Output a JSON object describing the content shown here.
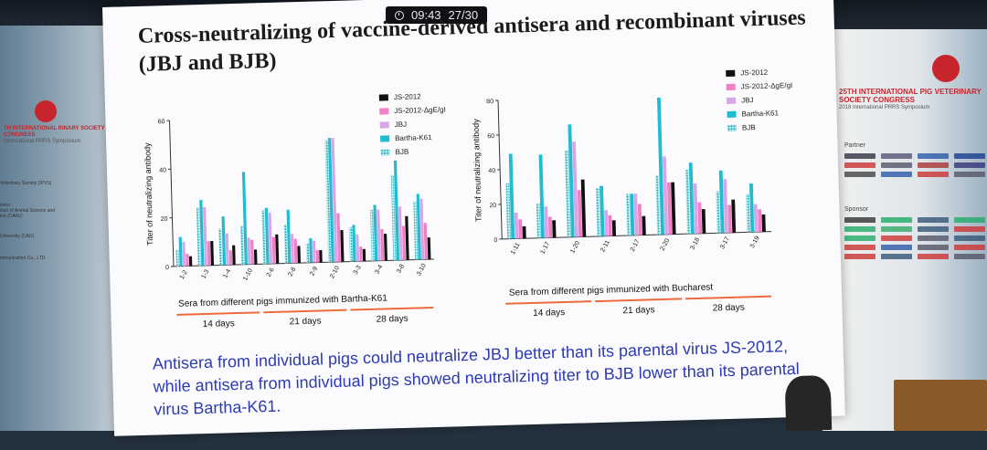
{
  "overlay": {
    "time": "09:43",
    "page": "27/30"
  },
  "slide": {
    "title": "Cross-neutralizing of vaccine-derived antisera and recombinant viruses (JBJ and BJB)",
    "statement": "Antisera from individual pigs could neutralize JBJ better than its parental virus JS-2012, while antisera from individual pigs showed neutralizing titer to BJB lower than its parental virus Bartha-K61."
  },
  "side_banner": {
    "right_title": "25TH INTERNATIONAL PIG VETERINARY SOCIETY CONGRESS",
    "right_sub": "2018 International PRRS Symposium",
    "left_title": "TH INTERNATIONAL RINARY SOCIETY CONGRESS",
    "left_sub": "International PRRS Symposium",
    "partner_label": "Partner",
    "sponsor_label": "Sponsor",
    "left_lines": [
      "Veterinary Society (IPVS)",
      "izers:",
      "ition of Animal Science and",
      "ine (CAAV)",
      "University (CAU)",
      "mmunication Co., LTD"
    ]
  },
  "colors": {
    "JS-2012": "#111111",
    "JS-2012-ΔgE/gI": "#f07fc6",
    "JBJ": "#d7a6e6",
    "Bartha-K61": "#20bcd2",
    "BJB": "#21a9b3",
    "period_line": "#ee6a3c",
    "statement": "#2c3bb4"
  },
  "chart_data": [
    {
      "type": "bar",
      "ylabel": "Titer of neutralizing antibody",
      "xlabel": "Sera from different pigs immunized with Bartha-K61",
      "ylim": [
        0,
        60
      ],
      "yticks": [
        0,
        20,
        40,
        60
      ],
      "grid": false,
      "legend_position": "top-right",
      "periods": [
        "14 days",
        "21 days",
        "28 days"
      ],
      "period_groups": [
        [
          0,
          3
        ],
        [
          4,
          7
        ],
        [
          8,
          11
        ]
      ],
      "categories": [
        "1-2",
        "1-3",
        "1-4",
        "1-10",
        "2-6",
        "2-8",
        "2-9",
        "2-10",
        "3-3",
        "3-4",
        "3-8",
        "3-10"
      ],
      "series": [
        {
          "name": "BJB",
          "values": [
            7,
            24,
            15,
            16,
            22,
            16,
            8,
            50,
            14,
            21,
            35,
            24
          ]
        },
        {
          "name": "Bartha-K61",
          "values": [
            12,
            27,
            20,
            38,
            23,
            22,
            10,
            51,
            15,
            23,
            41,
            27
          ]
        },
        {
          "name": "JBJ",
          "values": [
            10,
            24,
            13,
            11,
            21,
            12,
            9,
            51,
            11,
            21,
            22,
            25
          ]
        },
        {
          "name": "JS-2012-ΔgE/gI",
          "values": [
            5,
            10,
            6,
            10,
            11,
            10,
            5,
            20,
            6,
            13,
            14,
            15
          ]
        },
        {
          "name": "JS-2012",
          "values": [
            4,
            10,
            8,
            6,
            12,
            7,
            5,
            13,
            5,
            11,
            18,
            9
          ]
        }
      ],
      "legend": [
        "JS-2012",
        "JS-2012-ΔgE/gI",
        "JBJ",
        "Bartha-K61",
        "BJB"
      ]
    },
    {
      "type": "bar",
      "ylabel": "Titer of neutralizing antibody",
      "xlabel": "Sera from different pigs immunized with Bucharest",
      "ylim": [
        0,
        80
      ],
      "yticks": [
        0,
        20,
        40,
        60,
        80
      ],
      "grid": false,
      "legend_position": "top-right",
      "periods": [
        "14 days",
        "21 days",
        "28 days"
      ],
      "period_groups": [
        [
          0,
          2
        ],
        [
          3,
          5
        ],
        [
          6,
          8
        ]
      ],
      "categories": [
        "1-11",
        "1-17",
        "1-20",
        "2-11",
        "2-17",
        "2-20",
        "3-18",
        "3-17",
        "3-19"
      ],
      "series": [
        {
          "name": "BJB",
          "values": [
            32,
            20,
            50,
            28,
            24,
            34,
            37,
            24,
            22
          ]
        },
        {
          "name": "Bartha-K61",
          "values": [
            49,
            48,
            65,
            29,
            24,
            79,
            41,
            36,
            28
          ]
        },
        {
          "name": "JBJ",
          "values": [
            15,
            18,
            55,
            15,
            24,
            45,
            29,
            31,
            16
          ]
        },
        {
          "name": "JS-2012-ΔgE/gI",
          "values": [
            11,
            12,
            27,
            12,
            18,
            30,
            18,
            16,
            13
          ]
        },
        {
          "name": "JS-2012",
          "values": [
            7,
            10,
            33,
            9,
            11,
            30,
            14,
            19,
            10
          ]
        }
      ],
      "legend": [
        "JS-2012",
        "JS-2012-ΔgE/gI",
        "JBJ",
        "Bartha-K61",
        "BJB"
      ]
    }
  ]
}
